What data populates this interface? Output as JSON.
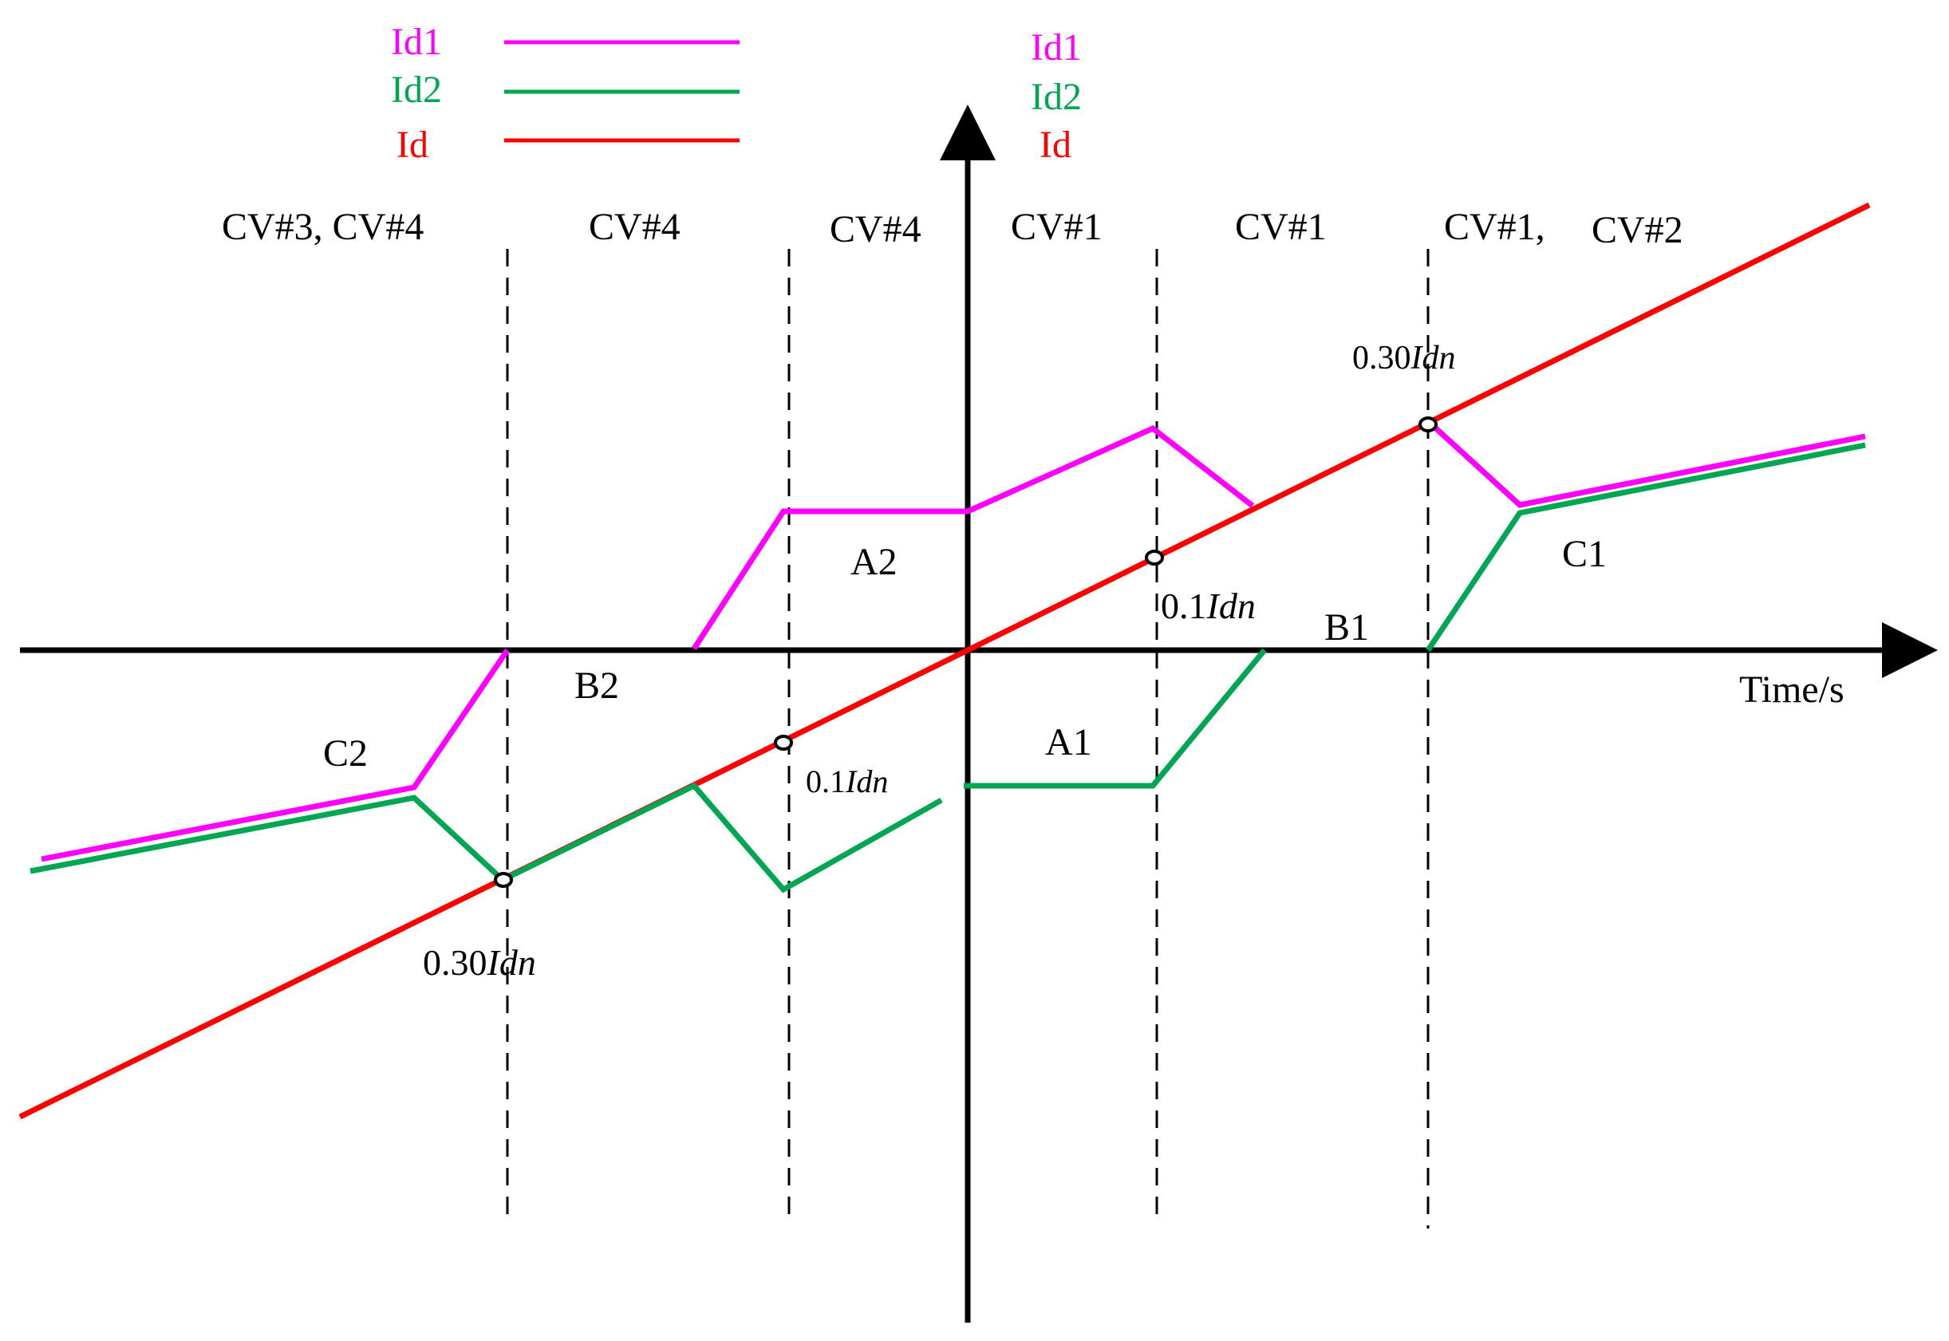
{
  "legend_left": [
    {
      "label": "Id1",
      "color": "#ff00ff"
    },
    {
      "label": "Id2",
      "color": "#00a651"
    },
    {
      "label": "Id",
      "color": "#ff0000"
    }
  ],
  "legend_right": [
    {
      "label": "Id1",
      "color": "#ff00ff"
    },
    {
      "label": "Id2",
      "color": "#00a651"
    },
    {
      "label": "Id",
      "color": "#ff0000"
    }
  ],
  "regions": {
    "r1": "CV#3, CV#4",
    "r2": "CV#4",
    "r3": "CV#4",
    "r4": "CV#1",
    "r5": "CV#1",
    "r6a": "CV#1,",
    "r6b": "CV#2"
  },
  "points": {
    "A1": "A1",
    "A2": "A2",
    "B1": "B1",
    "B2": "B2",
    "C1": "C1",
    "C2": "C2"
  },
  "annotations": {
    "val_030": "0.30",
    "val_01": "0.1",
    "unit": "Idn"
  },
  "axis": {
    "x_label": "Time/s"
  },
  "colors": {
    "id1": "#ff00ff",
    "id2": "#00a651",
    "id": "#ff0000",
    "axis": "#000000"
  }
}
